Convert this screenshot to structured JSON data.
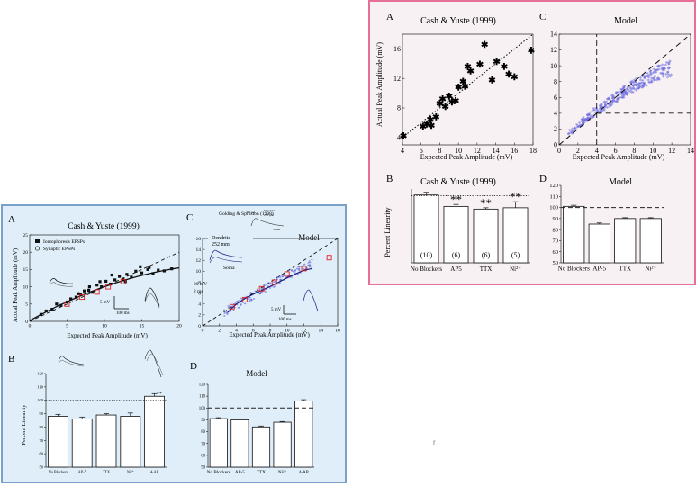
{
  "left_figure": {
    "A": {
      "letter": "A",
      "title": "Cash & Yuste (1999)",
      "xlabel": "Expected Peak Amplitude (mV)",
      "ylabel": "Actual Peak Amplitude (mV)",
      "x_ticks": [
        "0",
        "5",
        "10",
        "15",
        "20"
      ],
      "y_ticks": [
        "0",
        "5",
        "10",
        "15",
        "20",
        "25"
      ],
      "legend": [
        "Iontophoresis EPSPs",
        "Synaptic EPSPs"
      ],
      "scalebar_v": "5 mV",
      "scalebar_t": "100 ms"
    },
    "B": {
      "letter": "B",
      "ylabel": "Percent Linearity",
      "y_ticks": [
        "50",
        "60",
        "70",
        "80",
        "90",
        "100",
        "110",
        "120"
      ],
      "categories": [
        "No Blockers",
        "AP-5",
        "TTX",
        "Ni²⁺",
        "4-AP"
      ],
      "annotation": "**"
    },
    "C": {
      "letter": "C",
      "citation": "Golding & Spruston (1998)",
      "title": "Model",
      "xlabel": "Expected Peak Amplitude (mV)",
      "x_ticks": [
        "0",
        "2",
        "4",
        "6",
        "8",
        "10",
        "12",
        "14",
        "16"
      ],
      "y_ticks": [
        "0",
        "2",
        "4",
        "6",
        "8",
        "10",
        "12",
        "14",
        "16"
      ],
      "inset_labels": [
        "Dendrite",
        "252 mm",
        "Soma",
        "20 mV",
        "2 ms"
      ],
      "inset2_labels": [
        "200 μA",
        "Dendrite",
        "250 μm",
        "Soma"
      ],
      "scalebar_v": "5 mV",
      "scalebar_t": "100 ms"
    },
    "D": {
      "letter": "D",
      "title": "Model",
      "y_ticks": [
        "50",
        "60",
        "70",
        "80",
        "90",
        "100",
        "110",
        "120"
      ],
      "categories": [
        "No Blockers",
        "AP-5",
        "TTX",
        "Ni²⁺",
        "4-AP"
      ]
    }
  },
  "right_figure": {
    "A": {
      "letter": "A",
      "title": "Cash & Yuste (1999)",
      "xlabel": "Expected Peak Amplitude (mV)",
      "ylabel": "Actual Peak Amplitude (mV)",
      "x_ticks": [
        "4",
        "6",
        "8",
        "10",
        "12",
        "14",
        "16",
        "18"
      ],
      "y_ticks": [
        "4",
        "8",
        "12",
        "16"
      ]
    },
    "B": {
      "letter": "B",
      "title": "Cash & Yuste (1999)",
      "ylabel": "Percent Linearity",
      "y_ticks": [
        "0",
        "20",
        "40",
        "60",
        "80",
        "100"
      ],
      "categories": [
        "No Blockers",
        "AP5",
        "TTX",
        "Ni²⁺"
      ],
      "n_labels": [
        "(10)",
        "(6)",
        "(6)",
        "(5)"
      ],
      "significance": [
        "",
        "**",
        "**",
        "**"
      ]
    },
    "C": {
      "letter": "C",
      "title": "Model",
      "xlabel": "Expected Peak Amplitude (mV)",
      "x_ticks": [
        "0",
        "2",
        "4",
        "6",
        "8",
        "10",
        "12",
        "14"
      ],
      "y_ticks": [
        "0",
        "2",
        "4",
        "6",
        "8",
        "10",
        "12",
        "14"
      ]
    },
    "D": {
      "letter": "D",
      "title": "Model",
      "y_ticks": [
        "50",
        "60",
        "70",
        "80",
        "90",
        "100",
        "110",
        "120"
      ],
      "categories": [
        "No Blockers",
        "AP-5",
        "TTX",
        "Ni²⁺"
      ]
    }
  },
  "stray_mark": "r",
  "chart_data": [
    {
      "id": "left-A",
      "type": "scatter",
      "title": "Cash & Yuste (1999)",
      "xlabel": "Expected Peak Amplitude (mV)",
      "ylabel": "Actual Peak Amplitude (mV)",
      "xlim": [
        0,
        20
      ],
      "ylim": [
        0,
        25
      ],
      "legend_placement": "top-left",
      "series": [
        {
          "name": "Iontophoresis EPSPs",
          "points": [
            [
              1.5,
              2
            ],
            [
              2.2,
              3
            ],
            [
              3,
              3.5
            ],
            [
              3.6,
              5
            ],
            [
              4.2,
              4.6
            ],
            [
              5,
              5.6
            ],
            [
              5.5,
              6.5
            ],
            [
              6.2,
              7
            ],
            [
              6.8,
              7.8
            ],
            [
              7.3,
              8.8
            ],
            [
              7.9,
              9
            ],
            [
              8.4,
              8.4
            ],
            [
              9,
              10.5
            ],
            [
              9.6,
              10
            ],
            [
              10.2,
              11.6
            ],
            [
              10.8,
              10.8
            ],
            [
              11.4,
              12
            ],
            [
              12,
              13
            ],
            [
              12.5,
              12.2
            ],
            [
              13,
              13.6
            ],
            [
              13.6,
              12.8
            ],
            [
              14.2,
              14.5
            ],
            [
              15,
              14
            ],
            [
              15.8,
              15
            ],
            [
              16.5,
              13.8
            ],
            [
              17.2,
              14.8
            ],
            [
              18,
              14.6
            ],
            [
              19,
              15.2
            ],
            [
              11,
              13.4
            ],
            [
              9.4,
              11.5
            ],
            [
              8,
              10
            ],
            [
              6.5,
              8
            ],
            [
              14.8,
              15.8
            ],
            [
              12.8,
              11.5
            ],
            [
              16,
              15.6
            ]
          ]
        },
        {
          "name": "Synaptic EPSPs",
          "points": [
            [
              5,
              5
            ],
            [
              7,
              7
            ],
            [
              9,
              8.5
            ],
            [
              10.5,
              10
            ],
            [
              12.5,
              11.5
            ]
          ]
        }
      ]
    },
    {
      "id": "left-B",
      "type": "bar",
      "ylabel": "Percent Linearity",
      "ylim": [
        50,
        120
      ],
      "categories": [
        "No Blockers",
        "AP-5",
        "TTX",
        "Ni²⁺",
        "4-AP"
      ],
      "values": [
        88,
        86,
        89,
        88,
        103
      ],
      "errors": [
        1.5,
        1.5,
        1,
        2.5,
        2
      ],
      "reference": 100
    },
    {
      "id": "left-C",
      "type": "scatter",
      "title": "Model",
      "xlabel": "Expected Peak Amplitude (mV)",
      "xlim": [
        0,
        16
      ],
      "ylim": [
        0,
        16
      ],
      "series": [
        {
          "name": "",
          "points": [
            [
              3,
              2.5
            ],
            [
              4,
              4
            ],
            [
              5,
              5
            ],
            [
              6,
              5.8
            ],
            [
              7,
              6.5
            ],
            [
              8,
              7.2
            ],
            [
              9,
              8
            ],
            [
              10,
              8.8
            ],
            [
              11,
              9.5
            ],
            [
              12,
              10.2
            ],
            [
              13,
              10.5
            ]
          ]
        },
        {
          "name": "",
          "points": [
            [
              3.5,
              3.5
            ],
            [
              5,
              4.8
            ],
            [
              7,
              6.8
            ],
            [
              8.5,
              8
            ],
            [
              10,
              9.5
            ],
            [
              12,
              10.5
            ],
            [
              15,
              12.5
            ]
          ]
        }
      ]
    },
    {
      "id": "left-D",
      "type": "bar",
      "title": "Model",
      "ylim": [
        50,
        120
      ],
      "categories": [
        "No Blockers",
        "AP-5",
        "TTX",
        "Ni²⁺",
        "4-AP"
      ],
      "values": [
        91,
        90,
        84,
        88,
        106
      ],
      "errors": [
        0.8,
        0.6,
        0.8,
        0.6,
        1
      ],
      "reference": 100
    },
    {
      "id": "right-A",
      "type": "scatter",
      "title": "Cash & Yuste (1999)",
      "xlabel": "Expected Peak Amplitude (mV)",
      "ylabel": "Actual Peak Amplitude (mV)",
      "xlim": [
        4,
        18
      ],
      "ylim": [
        3,
        18
      ],
      "series": [
        {
          "name": "",
          "points": [
            [
              4.1,
              4.2
            ],
            [
              6.2,
              5.5
            ],
            [
              6.6,
              5.8
            ],
            [
              7,
              6.4
            ],
            [
              7.1,
              5.6
            ],
            [
              7.6,
              6.8
            ],
            [
              8,
              8.6
            ],
            [
              8.3,
              9.2
            ],
            [
              8.6,
              8.2
            ],
            [
              9,
              9.6
            ],
            [
              9.3,
              8.8
            ],
            [
              9.7,
              9
            ],
            [
              10,
              10.8
            ],
            [
              10.5,
              11.6
            ],
            [
              10.7,
              10.9
            ],
            [
              11,
              13.6
            ],
            [
              11.3,
              13
            ],
            [
              12.3,
              13.9
            ],
            [
              12.8,
              16.6
            ],
            [
              13.6,
              11.8
            ],
            [
              14.1,
              14.3
            ],
            [
              14.9,
              13.6
            ],
            [
              15.4,
              12.6
            ],
            [
              16,
              12.2
            ],
            [
              17.8,
              15.8
            ]
          ]
        }
      ]
    },
    {
      "id": "right-B",
      "type": "bar",
      "title": "Cash & Yuste (1999)",
      "ylabel": "Percent Linearity",
      "ylim": [
        0,
        110
      ],
      "categories": [
        "No Blockers",
        "AP5",
        "TTX",
        "Ni²⁺"
      ],
      "values": [
        101,
        84,
        80,
        82
      ],
      "errors": [
        4,
        3,
        2,
        9
      ],
      "reference": 100
    },
    {
      "id": "right-C",
      "type": "scatter",
      "title": "Model",
      "xlabel": "Expected Peak Amplitude (mV)",
      "xlim": [
        0,
        14
      ],
      "ylim": [
        0,
        14
      ],
      "cloud": {
        "x_from": 1,
        "x_to": 12,
        "count": 320,
        "curve": "y≈x−0.3(x−4)²/8"
      }
    },
    {
      "id": "right-D",
      "type": "bar",
      "title": "Model",
      "ylim": [
        50,
        120
      ],
      "categories": [
        "No Blockers",
        "AP-5",
        "TTX",
        "Ni²⁺"
      ],
      "values": [
        101,
        85,
        90,
        90
      ],
      "errors": [
        1,
        1,
        0.8,
        0.8
      ],
      "reference": 100
    }
  ]
}
